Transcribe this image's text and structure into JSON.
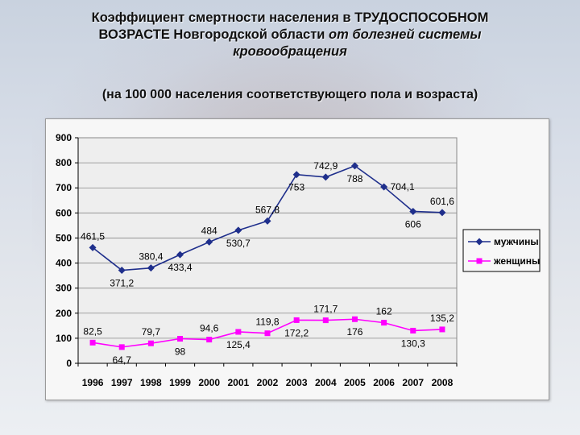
{
  "header": {
    "title_line1": "Коэффициент  смертности населения в ТРУДОСПОСОБНОМ",
    "title_line2_normal": "ВОЗРАСТЕ Новгородской области ",
    "title_line2_italic": "от болезней системы",
    "title_line3_italic": "кровообращения",
    "subtitle": "(на 100 000 населения соответствующего пола и возраста)"
  },
  "chart_data": {
    "type": "line",
    "title": "",
    "xlabel": "",
    "ylabel": "",
    "categories": [
      "1996",
      "1997",
      "1998",
      "1999",
      "2000",
      "2001",
      "2002",
      "2003",
      "2004",
      "2005",
      "2006",
      "2007",
      "2008"
    ],
    "ylim": [
      0,
      900
    ],
    "yticks": [
      0,
      100,
      200,
      300,
      400,
      500,
      600,
      700,
      800,
      900
    ],
    "grid": true,
    "legend_position": "right",
    "series": [
      {
        "name": "мужчины",
        "color": "#1f2f8c",
        "marker": "diamond",
        "values": [
          461.5,
          371.2,
          380.4,
          433.4,
          484,
          530.7,
          567.8,
          753,
          742.9,
          788,
          704.1,
          606,
          601.6
        ],
        "labels": [
          "461,5",
          "371,2",
          "380,4",
          "433,4",
          "484",
          "530,7",
          "567,8",
          "753",
          "742,9",
          "788",
          "704,1",
          "606",
          "601,6"
        ],
        "label_pos": [
          "above",
          "below",
          "above",
          "below",
          "above",
          "below",
          "above",
          "below",
          "above",
          "below",
          "right",
          "below",
          "above"
        ]
      },
      {
        "name": "женщины",
        "color": "#ff00ff",
        "marker": "square",
        "values": [
          82.5,
          64.7,
          79.7,
          98,
          94.6,
          125.4,
          119.8,
          172.2,
          171.7,
          176,
          162,
          130.3,
          135.2
        ],
        "labels": [
          "82,5",
          "64,7",
          "79,7",
          "98",
          "94,6",
          "125,4",
          "119,8",
          "172,2",
          "171,7",
          "176",
          "162",
          "130,3",
          "135,2"
        ],
        "label_pos": [
          "above",
          "below",
          "above",
          "below",
          "above",
          "below",
          "above",
          "below",
          "above",
          "below",
          "above",
          "below",
          "above"
        ]
      }
    ]
  }
}
